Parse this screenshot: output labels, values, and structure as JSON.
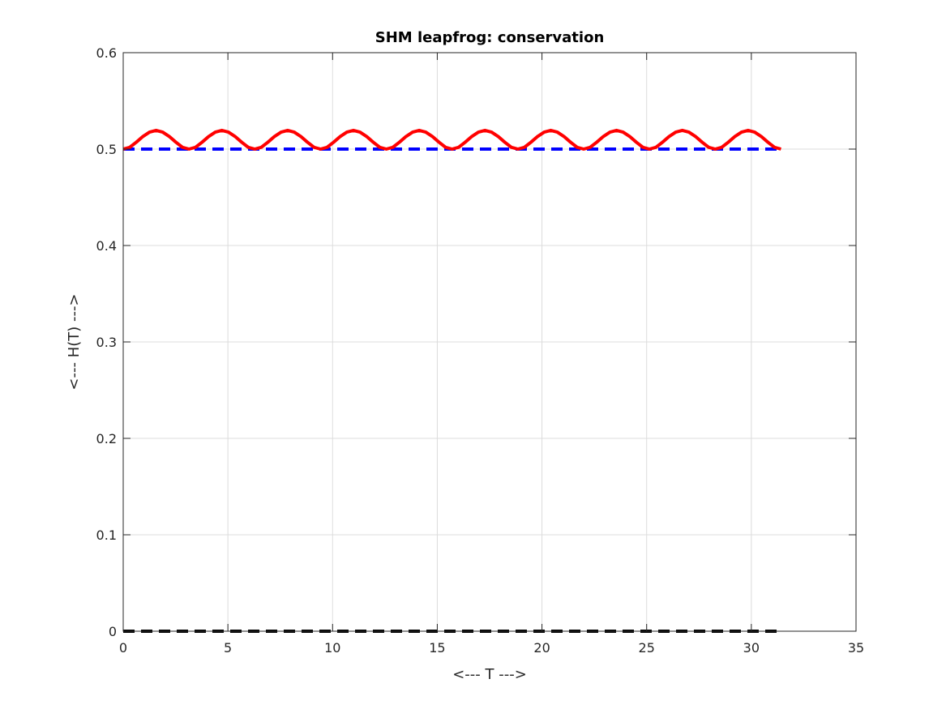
{
  "chart_data": {
    "type": "line",
    "title": "SHM leapfrog: conservation",
    "xlabel": "<--- T --->",
    "ylabel": "<--- H(T) --->",
    "xlim": [
      0,
      35
    ],
    "ylim": [
      0,
      0.6
    ],
    "xticks": [
      0,
      5,
      10,
      15,
      20,
      25,
      30,
      35
    ],
    "yticks": [
      0,
      0.1,
      0.2,
      0.3,
      0.4,
      0.5,
      0.6
    ],
    "xtick_labels": [
      "0",
      "5",
      "10",
      "15",
      "20",
      "25",
      "30",
      "35"
    ],
    "ytick_labels": [
      "0",
      "0.1",
      "0.2",
      "0.3",
      "0.4",
      "0.5",
      "0.6"
    ],
    "grid": true,
    "series": [
      {
        "style": "solid",
        "color": "#ff0000",
        "x": [
          0,
          0.314,
          0.628,
          0.942,
          1.257,
          1.571,
          1.885,
          2.199,
          2.513,
          2.827,
          3.142,
          3.456,
          3.77,
          4.084,
          4.398,
          4.712,
          5.027,
          5.341,
          5.655,
          5.969,
          6.283,
          6.597,
          6.912,
          7.226,
          7.54,
          7.854,
          8.168,
          8.482,
          8.796,
          9.111,
          9.425,
          9.739,
          10.053,
          10.367,
          10.681,
          10.996,
          11.31,
          11.624,
          11.938,
          12.252,
          12.566,
          12.881,
          13.195,
          13.509,
          13.823,
          14.137,
          14.451,
          14.765,
          15.08,
          15.394,
          15.708,
          16.022,
          16.336,
          16.65,
          16.965,
          17.279,
          17.593,
          17.907,
          18.221,
          18.535,
          18.85,
          19.164,
          19.478,
          19.792,
          20.106,
          20.42,
          20.735,
          21.049,
          21.363,
          21.677,
          21.991,
          22.305,
          22.619,
          22.934,
          23.248,
          23.562,
          23.876,
          24.19,
          24.504,
          24.819,
          25.133,
          25.447,
          25.761,
          26.075,
          26.389,
          26.704,
          27.018,
          27.332,
          27.646,
          27.96,
          28.274,
          28.588,
          28.903,
          29.217,
          29.531,
          29.845,
          30.159,
          30.473,
          30.788,
          31.102,
          31.416
        ],
        "y": [
          0.5,
          0.5019,
          0.5072,
          0.5131,
          0.5176,
          0.5194,
          0.5176,
          0.5131,
          0.5072,
          0.5019,
          0.5,
          0.5019,
          0.5072,
          0.5131,
          0.5176,
          0.5194,
          0.5176,
          0.5131,
          0.5072,
          0.5019,
          0.5,
          0.5019,
          0.5072,
          0.5131,
          0.5176,
          0.5194,
          0.5176,
          0.5131,
          0.5072,
          0.5019,
          0.5,
          0.5019,
          0.5072,
          0.5131,
          0.5176,
          0.5194,
          0.5176,
          0.5131,
          0.5072,
          0.5019,
          0.5,
          0.5019,
          0.5072,
          0.5131,
          0.5176,
          0.5194,
          0.5176,
          0.5131,
          0.5072,
          0.5019,
          0.5,
          0.5019,
          0.5072,
          0.5131,
          0.5176,
          0.5194,
          0.5176,
          0.5131,
          0.5072,
          0.5019,
          0.5,
          0.5019,
          0.5072,
          0.5131,
          0.5176,
          0.5194,
          0.5176,
          0.5131,
          0.5072,
          0.5019,
          0.5,
          0.5019,
          0.5072,
          0.5131,
          0.5176,
          0.5194,
          0.5176,
          0.5131,
          0.5072,
          0.5019,
          0.5,
          0.5019,
          0.5072,
          0.5131,
          0.5176,
          0.5194,
          0.5176,
          0.5131,
          0.5072,
          0.5019,
          0.5,
          0.5019,
          0.5072,
          0.5131,
          0.5176,
          0.5194,
          0.5176,
          0.5131,
          0.5072,
          0.5019,
          0.5
        ]
      },
      {
        "style": "dashed",
        "color": "#0000ff",
        "x": [
          0,
          31.416
        ],
        "y": [
          0.5,
          0.5
        ]
      },
      {
        "style": "dashed",
        "color": "#000000",
        "x": [
          0,
          31.416
        ],
        "y": [
          0,
          0
        ]
      }
    ]
  }
}
